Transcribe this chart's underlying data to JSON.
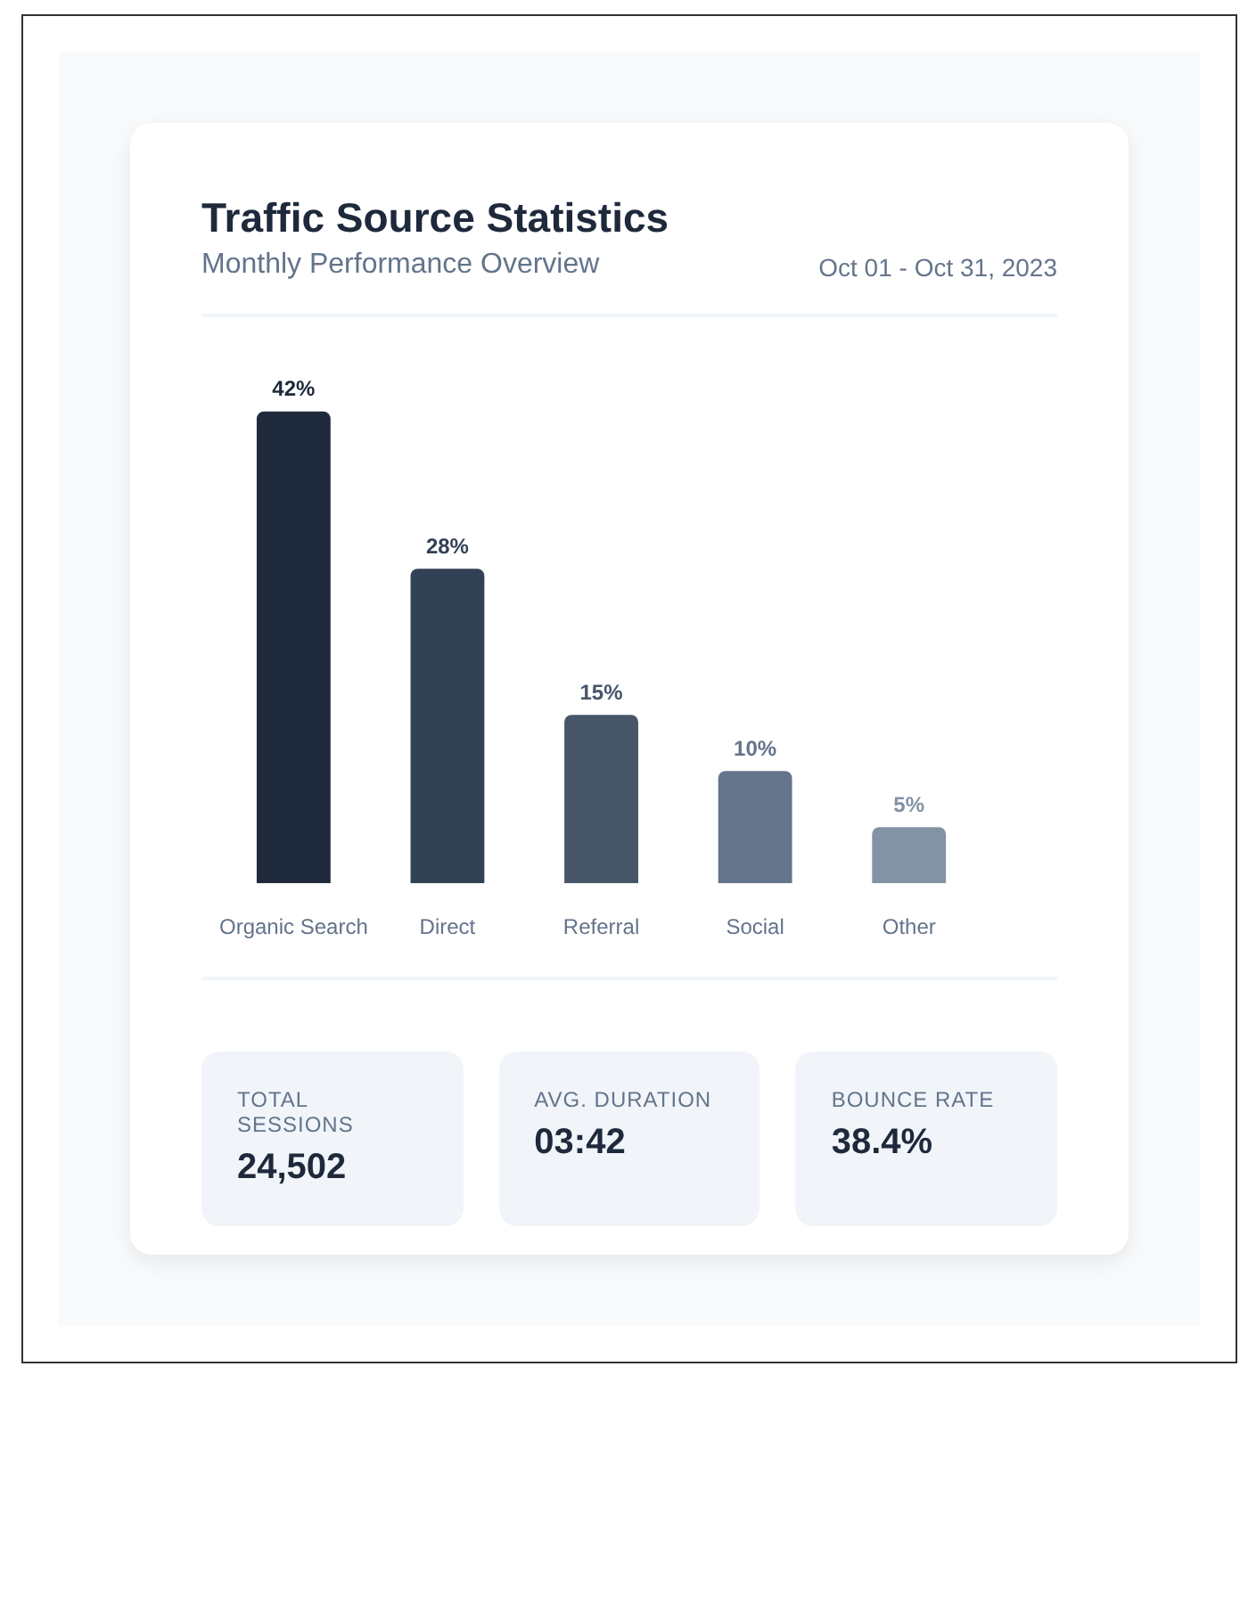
{
  "chart_data": [
    {
      "type": "bar",
      "title": "Traffic Source Statistics",
      "subtitle": "Monthly Performance Overview",
      "annotations": [
        "Oct 01 - Oct 31, 2023"
      ],
      "categories": [
        "Organic Search",
        "Direct",
        "Referral",
        "Social",
        "Other"
      ],
      "values": [
        42,
        28,
        15,
        10,
        5
      ],
      "colors": [
        "#1e293b",
        "#334155",
        "#475569",
        "#64748b",
        "#8492a6"
      ],
      "value_labels": [
        "42%",
        "28%",
        "15%",
        "10%",
        "5%"
      ],
      "tick_labels": "x"
    },
    {
      "type": "other",
      "annotations": [
        "TOTAL SESSIONS",
        "24,502",
        "AVG. DURATION",
        "03:42",
        "BOUNCE RATE",
        "38.4%"
      ]
    }
  ]
}
